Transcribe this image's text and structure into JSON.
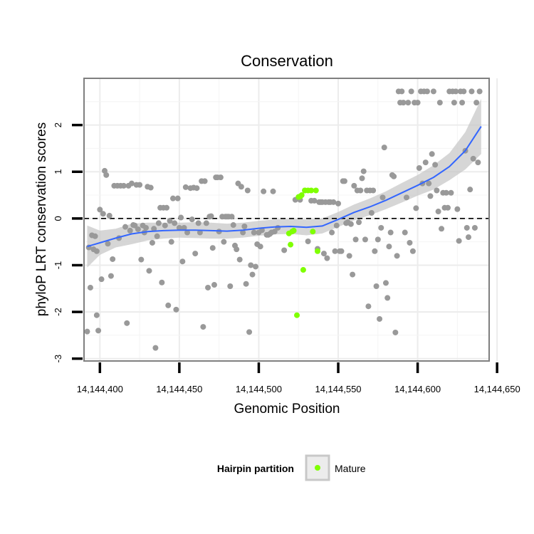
{
  "chart_data": {
    "type": "scatter",
    "title": "Conservation",
    "xlabel": "Genomic Position",
    "ylabel": "phyloP LRT conservation scores",
    "xlim": [
      14144390,
      14144645
    ],
    "ylim": [
      -3.05,
      3.0
    ],
    "x_ticks": [
      14144400,
      14144450,
      14144500,
      14144550,
      14144600,
      14144650
    ],
    "x_tick_labels": [
      "14,144,400",
      "14,144,450",
      "14,144,500",
      "14,144,550",
      "14,144,600",
      "14,144,650"
    ],
    "y_ticks": [
      -3,
      -2,
      -1,
      0,
      1,
      2
    ],
    "y_tick_labels": [
      "-3",
      "-2",
      "-1",
      "0",
      "1",
      "2"
    ],
    "grid": true,
    "reference_line": {
      "y": 0,
      "style": "dashed"
    },
    "colors": {
      "background_point": "#999999",
      "mature_point": "#7fff00",
      "trend_line": "#3366ff",
      "confidence_band": "#c8c8c8",
      "grid": "#ececec",
      "panel_border": "#7f7f7f"
    },
    "legend": {
      "title": "Hairpin partition",
      "position": "bottom",
      "entries": [
        {
          "label": "Mature",
          "color": "#7fff00"
        }
      ]
    },
    "series": [
      {
        "values": [
          [
            14144392,
            -2.42
          ],
          [
            14144393,
            -0.62
          ],
          [
            14144394,
            -1.48
          ],
          [
            14144395,
            -0.36
          ],
          [
            14144396,
            -0.66
          ],
          [
            14144397,
            -0.38
          ],
          [
            14144398,
            -2.07
          ],
          [
            14144398,
            -0.7
          ],
          [
            14144399,
            -2.4
          ],
          [
            14144400,
            0.19
          ],
          [
            14144401,
            -1.3
          ],
          [
            14144402,
            0.1
          ],
          [
            14144403,
            1.02
          ],
          [
            14144404,
            0.93
          ],
          [
            14144405,
            -0.54
          ],
          [
            14144406,
            0.06
          ],
          [
            14144407,
            -1.23
          ],
          [
            14144408,
            -0.87
          ],
          [
            14144409,
            0.7
          ],
          [
            14144411,
            0.7
          ],
          [
            14144412,
            -0.42
          ],
          [
            14144413,
            0.7
          ],
          [
            14144415,
            0.7
          ],
          [
            14144416,
            -0.18
          ],
          [
            14144417,
            -2.24
          ],
          [
            14144418,
            0.7
          ],
          [
            14144419,
            -0.26
          ],
          [
            14144420,
            0.75
          ],
          [
            14144421,
            -0.14
          ],
          [
            14144422,
            -0.15
          ],
          [
            14144423,
            0.72
          ],
          [
            14144424,
            -0.23
          ],
          [
            14144425,
            0.72
          ],
          [
            14144426,
            -0.88
          ],
          [
            14144427,
            -0.15
          ],
          [
            14144428,
            -0.3
          ],
          [
            14144429,
            -0.2
          ],
          [
            14144430,
            0.68
          ],
          [
            14144431,
            -1.12
          ],
          [
            14144432,
            0.66
          ],
          [
            14144433,
            -0.52
          ],
          [
            14144434,
            -0.22
          ],
          [
            14144435,
            -2.77
          ],
          [
            14144436,
            -0.38
          ],
          [
            14144437,
            -0.1
          ],
          [
            14144438,
            0.23
          ],
          [
            14144439,
            -1.37
          ],
          [
            14144440,
            0.23
          ],
          [
            14144441,
            -0.15
          ],
          [
            14144442,
            0.23
          ],
          [
            14144443,
            -1.86
          ],
          [
            14144444,
            -0.05
          ],
          [
            14144445,
            -0.5
          ],
          [
            14144446,
            0.43
          ],
          [
            14144447,
            -0.1
          ],
          [
            14144448,
            -1.95
          ],
          [
            14144449,
            0.43
          ],
          [
            14144450,
            -0.2
          ],
          [
            14144451,
            0.02
          ],
          [
            14144452,
            -0.92
          ],
          [
            14144453,
            -0.2
          ],
          [
            14144454,
            0.67
          ],
          [
            14144455,
            -0.3
          ],
          [
            14144457,
            0.65
          ],
          [
            14144458,
            -0.02
          ],
          [
            14144459,
            0.66
          ],
          [
            14144460,
            -0.75
          ],
          [
            14144461,
            0.65
          ],
          [
            14144462,
            -0.1
          ],
          [
            14144463,
            -0.3
          ],
          [
            14144464,
            0.8
          ],
          [
            14144465,
            -2.32
          ],
          [
            14144466,
            0.8
          ],
          [
            14144467,
            -0.1
          ],
          [
            14144468,
            -1.48
          ],
          [
            14144469,
            0.04
          ],
          [
            14144470,
            0.05
          ],
          [
            14144471,
            -0.63
          ],
          [
            14144472,
            -1.42
          ],
          [
            14144473,
            0.88
          ],
          [
            14144474,
            0.88
          ],
          [
            14144475,
            -0.28
          ],
          [
            14144476,
            0.88
          ],
          [
            14144477,
            0.04
          ],
          [
            14144478,
            -0.5
          ],
          [
            14144479,
            0.04
          ],
          [
            14144480,
            0.04
          ],
          [
            14144481,
            0.04
          ],
          [
            14144482,
            -1.45
          ],
          [
            14144483,
            0.04
          ],
          [
            14144484,
            -0.14
          ],
          [
            14144485,
            -0.58
          ],
          [
            14144486,
            -0.66
          ],
          [
            14144487,
            0.75
          ],
          [
            14144488,
            -0.88
          ],
          [
            14144489,
            0.68
          ],
          [
            14144490,
            -0.3
          ],
          [
            14144491,
            -0.17
          ],
          [
            14144492,
            -1.4
          ],
          [
            14144493,
            0.6
          ],
          [
            14144494,
            -2.43
          ],
          [
            14144495,
            -1.0
          ],
          [
            14144496,
            -1.2
          ],
          [
            14144497,
            -0.3
          ],
          [
            14144498,
            -1.03
          ],
          [
            14144499,
            -0.55
          ],
          [
            14144500,
            -0.3
          ],
          [
            14144501,
            -0.6
          ],
          [
            14144502,
            -0.25
          ],
          [
            14144503,
            0.58
          ],
          [
            14144505,
            -0.35
          ],
          [
            14144506,
            -0.35
          ],
          [
            14144507,
            -0.33
          ],
          [
            14144508,
            -0.3
          ],
          [
            14144509,
            0.58
          ],
          [
            14144510,
            -0.28
          ],
          [
            14144512,
            -0.2
          ],
          [
            14144516,
            -0.68
          ],
          [
            14144523,
            0.4
          ],
          [
            14144526,
            0.4
          ],
          [
            14144529,
            0.6
          ],
          [
            14144531,
            -0.49
          ],
          [
            14144533,
            0.38
          ],
          [
            14144535,
            0.38
          ],
          [
            14144537,
            -0.65
          ],
          [
            14144538,
            0.35
          ],
          [
            14144539,
            0.35
          ],
          [
            14144540,
            0.35
          ],
          [
            14144541,
            -0.75
          ],
          [
            14144542,
            0.35
          ],
          [
            14144543,
            -0.85
          ],
          [
            14144544,
            0.35
          ],
          [
            14144545,
            0.35
          ],
          [
            14144546,
            -0.3
          ],
          [
            14144547,
            0.35
          ],
          [
            14144548,
            -0.7
          ],
          [
            14144549,
            -0.15
          ],
          [
            14144550,
            0.32
          ],
          [
            14144551,
            -0.7
          ],
          [
            14144552,
            -0.7
          ],
          [
            14144553,
            0.8
          ],
          [
            14144554,
            0.8
          ],
          [
            14144555,
            -0.1
          ],
          [
            14144556,
            -0.08
          ],
          [
            14144557,
            -0.8
          ],
          [
            14144558,
            -0.12
          ],
          [
            14144559,
            -1.2
          ],
          [
            14144560,
            0.7
          ],
          [
            14144561,
            -0.45
          ],
          [
            14144562,
            0.6
          ],
          [
            14144563,
            -0.08
          ],
          [
            14144564,
            0.6
          ],
          [
            14144565,
            0.86
          ],
          [
            14144566,
            1.01
          ],
          [
            14144567,
            -0.45
          ],
          [
            14144568,
            0.6
          ],
          [
            14144569,
            -1.88
          ],
          [
            14144570,
            0.6
          ],
          [
            14144571,
            0.12
          ],
          [
            14144572,
            0.6
          ],
          [
            14144573,
            -0.7
          ],
          [
            14144574,
            -1.45
          ],
          [
            14144575,
            -0.45
          ],
          [
            14144576,
            -2.15
          ],
          [
            14144577,
            -0.2
          ],
          [
            14144578,
            0.45
          ],
          [
            14144579,
            1.52
          ],
          [
            14144580,
            -1.38
          ],
          [
            14144581,
            -1.7
          ],
          [
            14144582,
            -0.6
          ],
          [
            14144583,
            -0.3
          ],
          [
            14144584,
            0.93
          ],
          [
            14144585,
            0.9
          ],
          [
            14144586,
            -2.44
          ],
          [
            14144587,
            -0.8
          ],
          [
            14144588,
            2.72
          ],
          [
            14144589,
            2.48
          ],
          [
            14144590,
            2.72
          ],
          [
            14144591,
            2.48
          ],
          [
            14144592,
            -0.3
          ],
          [
            14144593,
            0.45
          ],
          [
            14144594,
            2.48
          ],
          [
            14144595,
            -0.52
          ],
          [
            14144596,
            2.72
          ],
          [
            14144597,
            -0.7
          ],
          [
            14144598,
            2.48
          ],
          [
            14144599,
            0.22
          ],
          [
            14144600,
            2.48
          ],
          [
            14144601,
            1.08
          ],
          [
            14144602,
            2.72
          ],
          [
            14144603,
            0.75
          ],
          [
            14144604,
            2.72
          ],
          [
            14144605,
            1.2
          ],
          [
            14144606,
            2.72
          ],
          [
            14144607,
            0.75
          ],
          [
            14144608,
            0.48
          ],
          [
            14144609,
            1.38
          ],
          [
            14144610,
            2.72
          ],
          [
            14144611,
            1.15
          ],
          [
            14144612,
            0.6
          ],
          [
            14144613,
            0.15
          ],
          [
            14144614,
            2.48
          ],
          [
            14144615,
            -0.22
          ],
          [
            14144616,
            0.55
          ],
          [
            14144617,
            0.23
          ],
          [
            14144618,
            0.55
          ],
          [
            14144619,
            0.23
          ],
          [
            14144620,
            2.72
          ],
          [
            14144621,
            0.55
          ],
          [
            14144622,
            2.72
          ],
          [
            14144623,
            2.48
          ],
          [
            14144624,
            2.72
          ],
          [
            14144625,
            0.2
          ],
          [
            14144626,
            -0.48
          ],
          [
            14144627,
            2.72
          ],
          [
            14144628,
            2.48
          ],
          [
            14144629,
            2.72
          ],
          [
            14144630,
            1.45
          ],
          [
            14144631,
            -0.2
          ],
          [
            14144632,
            -0.4
          ],
          [
            14144633,
            0.62
          ],
          [
            14144634,
            2.72
          ],
          [
            14144635,
            1.28
          ],
          [
            14144636,
            -0.2
          ],
          [
            14144637,
            2.48
          ],
          [
            14144638,
            1.2
          ],
          [
            14144639,
            2.72
          ]
        ]
      },
      {
        "name": "Mature",
        "values": [
          [
            14144519,
            -0.32
          ],
          [
            14144520,
            -0.56
          ],
          [
            14144521,
            -0.28
          ],
          [
            14144522,
            -0.26
          ],
          [
            14144524,
            -2.07
          ],
          [
            14144525,
            0.46
          ],
          [
            14144526,
            0.47
          ],
          [
            14144527,
            0.5
          ],
          [
            14144528,
            -1.1
          ],
          [
            14144529,
            0.6
          ],
          [
            14144531,
            0.6
          ],
          [
            14144533,
            0.6
          ],
          [
            14144534,
            -0.28
          ],
          [
            14144536,
            0.6
          ],
          [
            14144537,
            -0.7
          ]
        ]
      }
    ],
    "smooth": {
      "x": [
        14144392,
        14144400,
        14144410,
        14144420,
        14144430,
        14144440,
        14144450,
        14144460,
        14144470,
        14144480,
        14144490,
        14144500,
        14144510,
        14144520,
        14144530,
        14144540,
        14144550,
        14144560,
        14144570,
        14144580,
        14144590,
        14144600,
        14144610,
        14144620,
        14144630,
        14144640
      ],
      "y": [
        -0.6,
        -0.52,
        -0.42,
        -0.33,
        -0.28,
        -0.26,
        -0.25,
        -0.25,
        -0.26,
        -0.27,
        -0.25,
        -0.21,
        -0.18,
        -0.17,
        -0.19,
        -0.16,
        -0.02,
        0.13,
        0.25,
        0.39,
        0.55,
        0.71,
        0.88,
        1.11,
        1.45,
        1.97
      ],
      "lower": [
        -1.05,
        -0.78,
        -0.62,
        -0.55,
        -0.47,
        -0.43,
        -0.41,
        -0.42,
        -0.43,
        -0.43,
        -0.41,
        -0.37,
        -0.34,
        -0.33,
        -0.36,
        -0.32,
        -0.18,
        -0.04,
        0.07,
        0.2,
        0.34,
        0.49,
        0.62,
        0.82,
        1.05,
        1.38
      ],
      "upper": [
        -0.15,
        -0.26,
        -0.22,
        -0.11,
        -0.09,
        -0.09,
        -0.09,
        -0.08,
        -0.09,
        -0.11,
        -0.09,
        -0.05,
        -0.02,
        -0.01,
        -0.02,
        0.0,
        0.14,
        0.3,
        0.43,
        0.58,
        0.76,
        0.93,
        1.14,
        1.4,
        1.85,
        2.56
      ]
    }
  }
}
